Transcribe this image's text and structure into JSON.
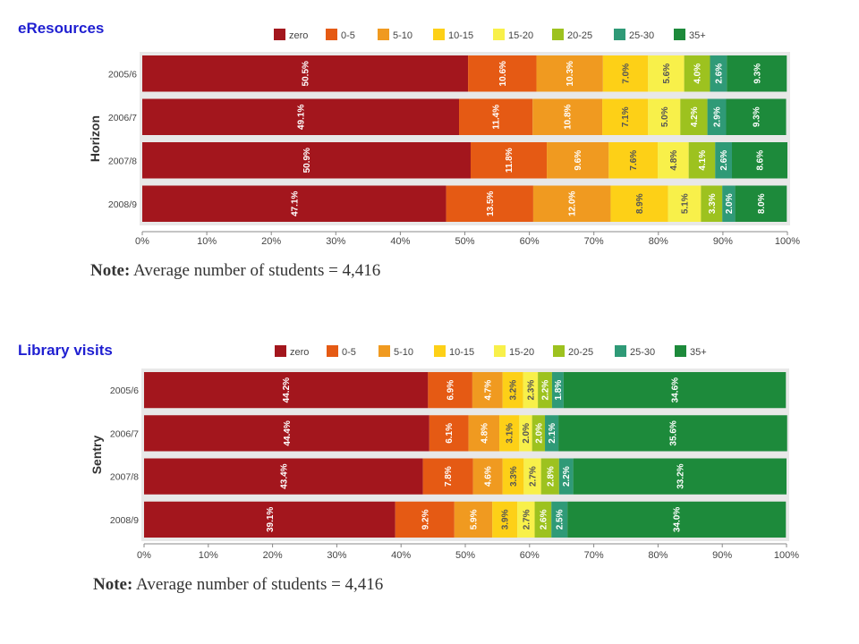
{
  "legend": {
    "items": [
      {
        "label": "zero",
        "color": "#a3161d"
      },
      {
        "label": "0-5",
        "color": "#e55a14"
      },
      {
        "label": "5-10",
        "color": "#f09a20"
      },
      {
        "label": "10-15",
        "color": "#fdd017"
      },
      {
        "label": "15-20",
        "color": "#f8f04a"
      },
      {
        "label": "20-25",
        "color": "#9dc21f"
      },
      {
        "label": "25-30",
        "color": "#2f9a77"
      },
      {
        "label": "35+",
        "color": "#1d8a3b"
      }
    ]
  },
  "chart_data": [
    {
      "type": "bar",
      "stacked": true,
      "orientation": "horizontal",
      "section_title": "eResources",
      "ylabel": "Horizon",
      "categories": [
        "2005/6",
        "2006/7",
        "2007/8",
        "2008/9"
      ],
      "xlim": [
        0,
        100
      ],
      "xticks": [
        "0%",
        "10%",
        "20%",
        "30%",
        "40%",
        "50%",
        "60%",
        "70%",
        "80%",
        "90%",
        "100%"
      ],
      "series": [
        {
          "name": "zero",
          "values": [
            50.5,
            49.1,
            50.9,
            47.1
          ],
          "labels": [
            "50.5%",
            "49.1%",
            "50.9%",
            "47.1%"
          ]
        },
        {
          "name": "0-5",
          "values": [
            10.6,
            11.4,
            11.8,
            13.5
          ],
          "labels": [
            "10.6%",
            "11.4%",
            "11.8%",
            "13.5%"
          ]
        },
        {
          "name": "5-10",
          "values": [
            10.3,
            10.8,
            9.6,
            12.0
          ],
          "labels": [
            "10.3%",
            "10.8%",
            "9.6%",
            "12.0%"
          ]
        },
        {
          "name": "10-15",
          "values": [
            7.0,
            7.1,
            7.6,
            8.9
          ],
          "labels": [
            "7.0%",
            "7.1%",
            "7.6%",
            "8.9%"
          ]
        },
        {
          "name": "15-20",
          "values": [
            5.6,
            5.0,
            4.8,
            5.1
          ],
          "labels": [
            "5.6%",
            "5.0%",
            "4.8%",
            "5.1%"
          ]
        },
        {
          "name": "20-25",
          "values": [
            4.0,
            4.2,
            4.1,
            3.3
          ],
          "labels": [
            "4.0%",
            "4.2%",
            "4.1%",
            "3.3%"
          ]
        },
        {
          "name": "25-30",
          "values": [
            2.6,
            2.9,
            2.6,
            2.0
          ],
          "labels": [
            "2.6%",
            "2.9%",
            "2.6%",
            "2.0%"
          ]
        },
        {
          "name": "35+",
          "values": [
            9.3,
            9.3,
            8.6,
            8.0
          ],
          "labels": [
            "9.3%",
            "9.3%",
            "8.6%",
            "8.0%"
          ]
        }
      ],
      "note_label": "Note:",
      "note_text": " Average number of students = 4,416"
    },
    {
      "type": "bar",
      "stacked": true,
      "orientation": "horizontal",
      "section_title": "Library visits",
      "ylabel": "Sentry",
      "categories": [
        "2005/6",
        "2006/7",
        "2007/8",
        "2008/9"
      ],
      "xlim": [
        0,
        100
      ],
      "xticks": [
        "0%",
        "10%",
        "20%",
        "30%",
        "40%",
        "50%",
        "60%",
        "70%",
        "80%",
        "90%",
        "100%"
      ],
      "series": [
        {
          "name": "zero",
          "values": [
            44.2,
            44.4,
            43.4,
            39.1
          ],
          "labels": [
            "44.2%",
            "44.4%",
            "43.4%",
            "39.1%"
          ]
        },
        {
          "name": "0-5",
          "values": [
            6.9,
            6.1,
            7.8,
            9.2
          ],
          "labels": [
            "6.9%",
            "6.1%",
            "7.8%",
            "9.2%"
          ]
        },
        {
          "name": "5-10",
          "values": [
            4.7,
            4.8,
            4.6,
            5.9
          ],
          "labels": [
            "4.7%",
            "4.8%",
            "4.6%",
            "5.9%"
          ]
        },
        {
          "name": "10-15",
          "values": [
            3.2,
            3.1,
            3.3,
            3.9
          ],
          "labels": [
            "3.2%",
            "3.1%",
            "3.3%",
            "3.9%"
          ]
        },
        {
          "name": "15-20",
          "values": [
            2.3,
            2.0,
            2.7,
            2.7
          ],
          "labels": [
            "2.3%",
            "2.0%",
            "2.7%",
            "2.7%"
          ]
        },
        {
          "name": "20-25",
          "values": [
            2.2,
            2.0,
            2.8,
            2.6
          ],
          "labels": [
            "2.2%",
            "2.0%",
            "2.8%",
            "2.6%"
          ]
        },
        {
          "name": "25-30",
          "values": [
            1.8,
            2.1,
            2.2,
            2.5
          ],
          "labels": [
            "1.8%",
            "2.1%",
            "2.2%",
            "2.5%"
          ]
        },
        {
          "name": "35+",
          "values": [
            34.6,
            35.6,
            33.2,
            34.0
          ],
          "labels": [
            "34.6%",
            "35.6%",
            "33.2%",
            "34.0%"
          ]
        }
      ],
      "note_label": "Note:",
      "note_text": " Average number of students = 4,416"
    }
  ]
}
